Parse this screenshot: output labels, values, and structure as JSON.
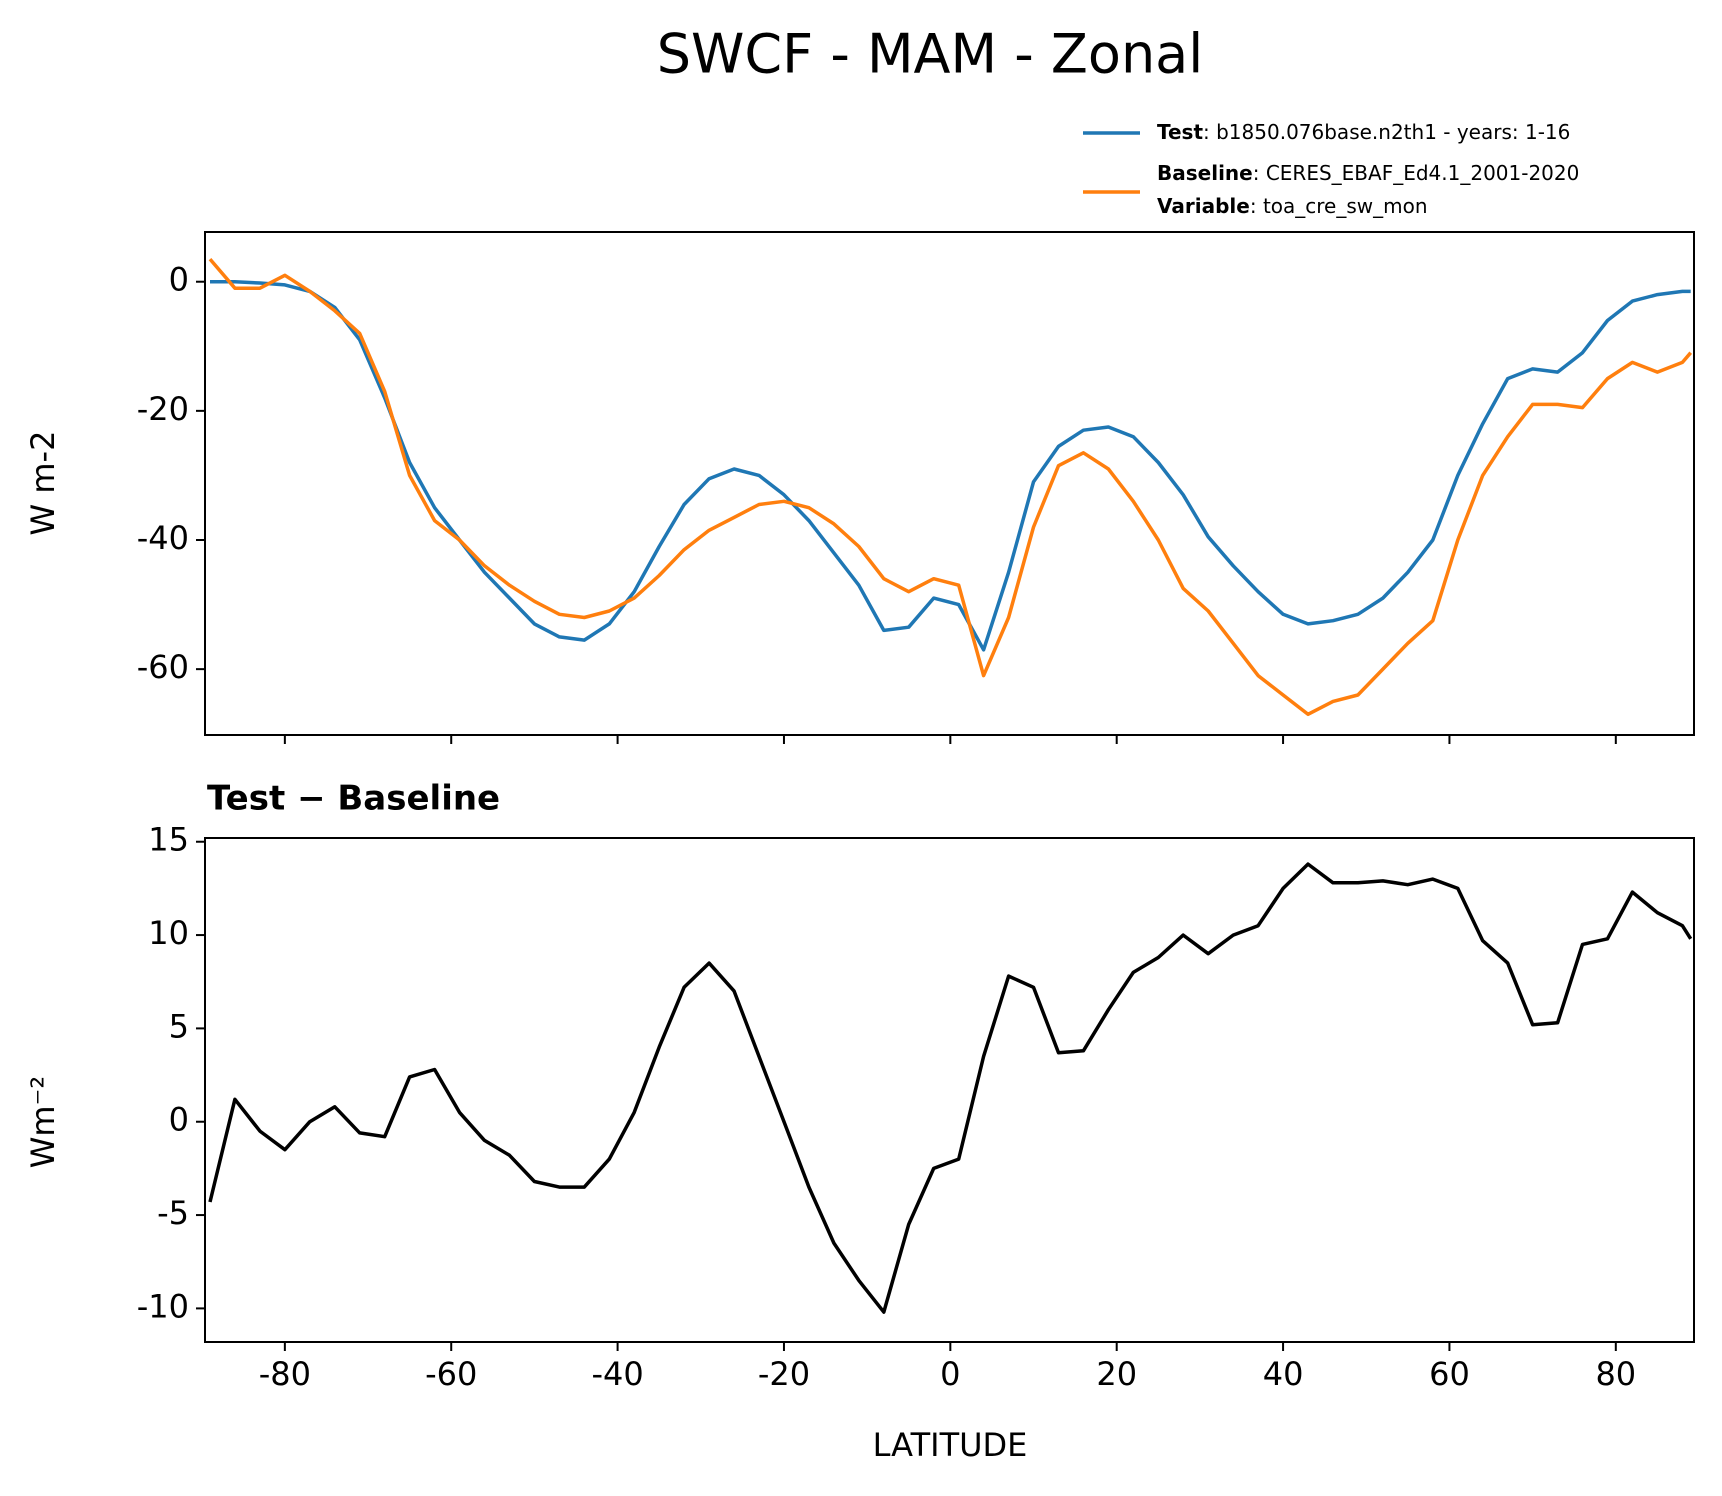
{
  "chart_data": [
    {
      "type": "line",
      "title": "SWCF - MAM - Zonal",
      "ylabel": "W m-2",
      "x": [
        -89,
        -86,
        -83,
        -80,
        -77,
        -74,
        -71,
        -68,
        -65,
        -62,
        -59,
        -56,
        -53,
        -50,
        -47,
        -44,
        -41,
        -38,
        -35,
        -32,
        -29,
        -26,
        -23,
        -20,
        -17,
        -14,
        -11,
        -8,
        -5,
        -2,
        1,
        4,
        7,
        10,
        13,
        16,
        19,
        22,
        25,
        28,
        31,
        34,
        37,
        40,
        43,
        46,
        49,
        52,
        55,
        58,
        61,
        64,
        67,
        70,
        73,
        76,
        79,
        82,
        85,
        88,
        89
      ],
      "series": [
        {
          "name": "Test",
          "description": ": b1850.076base.n2th1 - years: 1-16",
          "color": "#1f77b4",
          "values": [
            0,
            0,
            -0.2,
            -0.5,
            -1.5,
            -4,
            -9,
            -18,
            -28,
            -35,
            -40,
            -45,
            -49,
            -53,
            -55,
            -55.5,
            -53,
            -48,
            -41,
            -34.5,
            -30.5,
            -29,
            -30,
            -33,
            -37,
            -42,
            -47,
            -54,
            -53.5,
            -49,
            -50,
            -57,
            -45,
            -31,
            -25.5,
            -23,
            -22.5,
            -24,
            -28,
            -33,
            -39.5,
            -44,
            -48,
            -51.5,
            -53,
            -52.5,
            -51.5,
            -49,
            -45,
            -40,
            -30,
            -22,
            -15,
            -13.5,
            -14,
            -11,
            -6,
            -3,
            -2,
            -1.5,
            -1.5
          ]
        },
        {
          "name": "Baseline",
          "description": ": CERES_EBAF_Ed4.1_2001-2020",
          "color": "#ff7f0e",
          "values": [
            3.5,
            -1,
            -1,
            1,
            -1.5,
            -4.5,
            -8,
            -17,
            -30,
            -37,
            -40,
            -44,
            -47,
            -49.5,
            -51.5,
            -52,
            -51,
            -49,
            -45.5,
            -41.5,
            -38.5,
            -36.5,
            -34.5,
            -34,
            -35,
            -37.5,
            -41,
            -46,
            -48,
            -46,
            -47,
            -61,
            -52,
            -38,
            -28.5,
            -26.5,
            -29,
            -34,
            -40,
            -47.5,
            -51,
            -56,
            -61,
            -64,
            -67,
            -65,
            -64,
            -60,
            -56,
            -52.5,
            -40,
            -30,
            -24,
            -19,
            -19,
            -19.5,
            -15,
            -12.5,
            -14,
            -12.5,
            -11
          ]
        }
      ],
      "variable_name": "Variable",
      "variable": ": toa_cre_sw_mon",
      "xlim": [
        -89.6,
        89.4
      ],
      "xticks": [
        -80,
        -60,
        -40,
        -20,
        0,
        20,
        40,
        60,
        80
      ],
      "ylim": [
        -70.2,
        7.7
      ],
      "yticks": [
        -60,
        -40,
        -20,
        0
      ]
    },
    {
      "type": "line",
      "subtitle": "Test − Baseline",
      "ylabel": "Wm⁻²",
      "xlabel": "LATITUDE",
      "x": [
        -89,
        -86,
        -83,
        -80,
        -77,
        -74,
        -71,
        -68,
        -65,
        -62,
        -59,
        -56,
        -53,
        -50,
        -47,
        -44,
        -41,
        -38,
        -35,
        -32,
        -29,
        -26,
        -23,
        -20,
        -17,
        -14,
        -11,
        -8,
        -5,
        -2,
        1,
        4,
        7,
        10,
        13,
        16,
        19,
        22,
        25,
        28,
        31,
        34,
        37,
        40,
        43,
        46,
        49,
        52,
        55,
        58,
        61,
        64,
        67,
        70,
        73,
        76,
        79,
        82,
        85,
        88,
        89
      ],
      "series": [
        {
          "color": "#000000",
          "values": [
            -4.3,
            1.2,
            -0.5,
            -1.5,
            0,
            0.8,
            -0.6,
            -0.8,
            2.4,
            2.8,
            0.5,
            -1,
            -1.8,
            -3.2,
            -3.5,
            -3.5,
            -2,
            0.5,
            4,
            7.2,
            8.5,
            7,
            3.5,
            0,
            -3.5,
            -6.5,
            -8.5,
            -10.2,
            -5.5,
            -2.5,
            -2,
            3.5,
            7.8,
            7.2,
            3.7,
            3.8,
            6,
            8,
            8.8,
            10,
            9,
            10,
            10.5,
            12.5,
            13.8,
            12.8,
            12.8,
            12.9,
            12.7,
            13,
            12.5,
            9.7,
            8.5,
            5.2,
            5.3,
            9.5,
            9.8,
            12.3,
            11.2,
            10.5,
            9.8
          ]
        }
      ],
      "xlim": [
        -89.6,
        89.4
      ],
      "xticks": [
        -80,
        -60,
        -40,
        -20,
        0,
        20,
        40,
        60,
        80
      ],
      "ylim": [
        -11.8,
        15.2
      ],
      "yticks": [
        -10,
        -5,
        0,
        5,
        10,
        15
      ]
    }
  ]
}
